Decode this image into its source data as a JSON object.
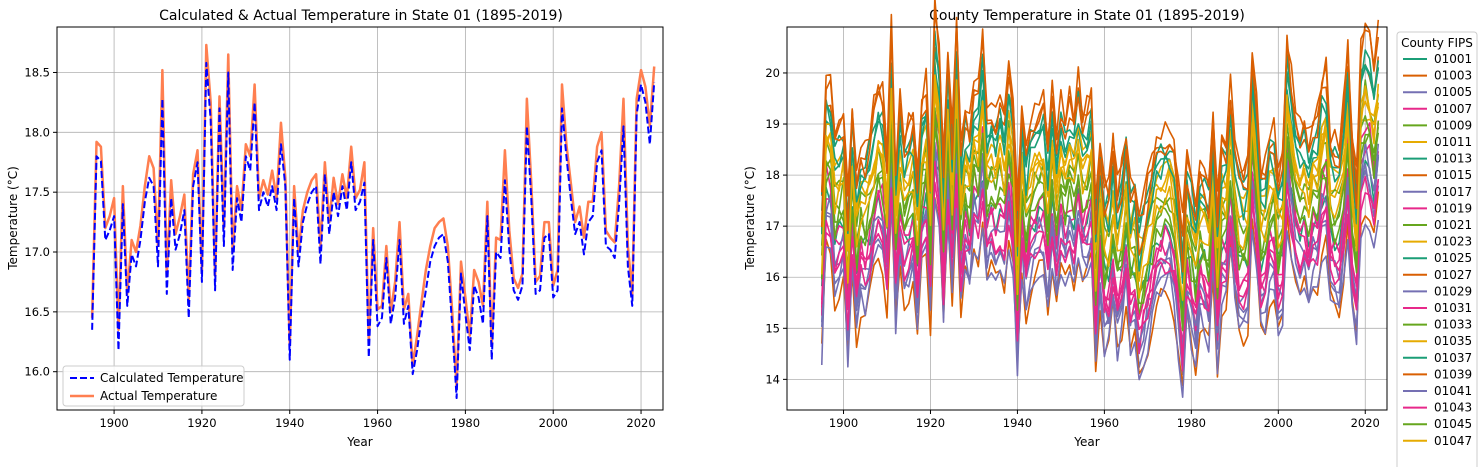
{
  "chart_data": [
    {
      "type": "line",
      "title": "Calculated & Actual Temperature in State 01 (1895-2019)",
      "xlabel": "Year",
      "ylabel": "Temperature (°C)",
      "xlim": [
        1887,
        2025
      ],
      "ylim": [
        15.68,
        18.88
      ],
      "xticks": [
        1900,
        1920,
        1940,
        1960,
        1980,
        2000,
        2020
      ],
      "yticks": [
        16.0,
        16.5,
        17.0,
        17.5,
        18.0,
        18.5
      ],
      "ytick_labels": [
        "16.0",
        "16.5",
        "17.0",
        "17.5",
        "18.0",
        "18.5"
      ],
      "grid": true,
      "legend_position": "lower-left",
      "x_start": 1895,
      "x_end": 2019,
      "series": [
        {
          "name": "Calculated Temperature",
          "color": "#0000ff",
          "style": "dashed",
          "values": [
            16.35,
            17.8,
            17.76,
            17.1,
            17.18,
            17.3,
            16.18,
            17.4,
            16.55,
            16.98,
            16.88,
            17.1,
            17.42,
            17.62,
            17.55,
            16.88,
            18.28,
            16.65,
            17.45,
            17.02,
            17.15,
            17.35,
            16.45,
            17.55,
            17.75,
            16.75,
            18.58,
            18.1,
            16.68,
            18.2,
            17.05,
            18.5,
            16.85,
            17.45,
            17.25,
            17.8,
            17.68,
            18.25,
            17.35,
            17.5,
            17.38,
            17.55,
            17.35,
            17.9,
            17.55,
            16.1,
            17.45,
            16.88,
            17.25,
            17.4,
            17.5,
            17.55,
            16.9,
            17.65,
            17.15,
            17.5,
            17.3,
            17.55,
            17.35,
            17.75,
            17.35,
            17.42,
            17.58,
            16.12,
            17.1,
            16.38,
            16.45,
            16.95,
            16.4,
            16.62,
            17.1,
            16.4,
            16.55,
            15.98,
            16.18,
            16.45,
            16.68,
            16.92,
            17.05,
            17.12,
            17.15,
            16.92,
            16.38,
            15.78,
            16.82,
            16.48,
            16.18,
            16.72,
            16.62,
            16.4,
            17.3,
            16.1,
            17.0,
            16.95,
            17.6,
            17.02,
            16.68,
            16.6,
            16.72,
            18.05,
            17.45,
            16.65,
            16.68,
            17.12,
            17.15,
            16.62,
            16.68,
            18.2,
            17.8,
            17.45,
            17.15,
            17.25,
            16.98,
            17.25,
            17.3,
            17.75,
            17.85,
            17.05,
            17.02,
            16.95,
            17.4,
            18.05,
            16.88,
            16.55,
            18.15,
            18.4,
            18.25,
            17.9,
            18.42
          ],
          "values_note": ""
        },
        {
          "name": "Actual Temperature",
          "color": "#ff7f50",
          "style": "solid",
          "values": [
            16.45,
            17.92,
            17.88,
            17.2,
            17.3,
            17.45,
            16.35,
            17.55,
            16.65,
            17.1,
            17.0,
            17.22,
            17.55,
            17.8,
            17.7,
            17.05,
            18.52,
            16.8,
            17.6,
            17.15,
            17.3,
            17.48,
            16.6,
            17.65,
            17.85,
            16.85,
            18.73,
            18.25,
            16.8,
            18.3,
            17.2,
            18.65,
            17.0,
            17.55,
            17.35,
            17.9,
            17.8,
            18.4,
            17.45,
            17.6,
            17.48,
            17.68,
            17.45,
            18.08,
            17.62,
            16.22,
            17.55,
            17.0,
            17.35,
            17.5,
            17.6,
            17.65,
            17.05,
            17.75,
            17.25,
            17.62,
            17.4,
            17.65,
            17.45,
            17.88,
            17.45,
            17.52,
            17.75,
            16.25,
            17.2,
            16.52,
            16.55,
            17.05,
            16.5,
            16.75,
            17.25,
            16.52,
            16.65,
            16.05,
            16.3,
            16.58,
            16.85,
            17.05,
            17.2,
            17.25,
            17.28,
            17.05,
            16.5,
            15.88,
            16.92,
            16.62,
            16.3,
            16.85,
            16.75,
            16.55,
            17.42,
            16.22,
            17.12,
            17.1,
            17.85,
            17.18,
            16.78,
            16.7,
            16.82,
            18.28,
            17.58,
            16.75,
            16.8,
            17.25,
            17.25,
            16.72,
            16.85,
            18.4,
            17.9,
            17.58,
            17.25,
            17.38,
            17.12,
            17.42,
            17.42,
            17.88,
            18.0,
            17.18,
            17.12,
            17.08,
            17.55,
            18.28,
            17.05,
            16.65,
            18.28,
            18.52,
            18.38,
            18.05,
            18.55
          ]
        }
      ]
    },
    {
      "type": "line",
      "title": "County Temperature in State 01 (1895-2019)",
      "xlabel": "Year",
      "ylabel": "Temperature (°C)",
      "xlim": [
        1887,
        2025
      ],
      "ylim": [
        13.4,
        20.9
      ],
      "xticks": [
        1900,
        1920,
        1940,
        1960,
        1980,
        2000,
        2020
      ],
      "yticks": [
        14,
        15,
        16,
        17,
        18,
        19,
        20
      ],
      "grid": true,
      "legend_title": "County FIPS",
      "legend_position": "right",
      "x_start": 1895,
      "x_end": 2019,
      "series_names": [
        "01001",
        "01003",
        "01005",
        "01007",
        "01009",
        "01011",
        "01013",
        "01015",
        "01017",
        "01019",
        "01021",
        "01023",
        "01025",
        "01027",
        "01029",
        "01031",
        "01033",
        "01035",
        "01037",
        "01039",
        "01041",
        "01043",
        "01045",
        "01047"
      ],
      "series_colors": [
        "#1b9e77",
        "#d95f02",
        "#7570b3",
        "#e7298a",
        "#66a61e",
        "#e6ab02",
        "#1b9e77",
        "#d95f02",
        "#7570b3",
        "#e7298a",
        "#66a61e",
        "#e6ab02",
        "#1b9e77",
        "#d95f02",
        "#7570b3",
        "#e7298a",
        "#66a61e",
        "#e6ab02",
        "#1b9e77",
        "#d95f02",
        "#7570b3",
        "#e7298a",
        "#66a61e",
        "#e6ab02"
      ],
      "series_offsets": [
        -0.2,
        1.7,
        -0.9,
        -0.4,
        0.4,
        0.9,
        1.3,
        -1.4,
        -0.6,
        -0.2,
        0.6,
        1.0,
        1.5,
        1.9,
        -1.1,
        -0.7,
        0.2,
        0.8,
        1.2,
        1.6,
        -1.2,
        -0.8,
        0.0,
        0.5
      ]
    }
  ]
}
